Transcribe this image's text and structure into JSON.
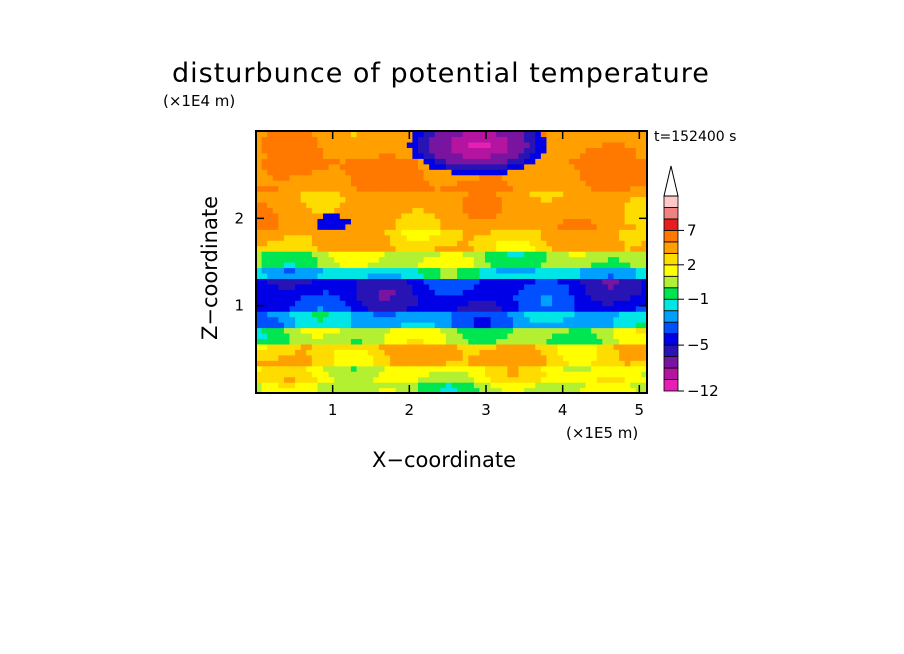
{
  "chart_data": {
    "type": "heatmap",
    "title": "disturbunce of potential temperature",
    "xlabel": "X−coordinate",
    "ylabel": "Z−coordinate",
    "x_unit": "(×1E5 m)",
    "y_unit": "(×1E4 m)",
    "annotation": "t=152400 s",
    "xlim": [
      0,
      5.1
    ],
    "ylim": [
      0,
      3.0
    ],
    "x_ticks": [
      1,
      2,
      3,
      4,
      5
    ],
    "y_ticks": [
      1,
      2
    ],
    "colorbar": {
      "levels": [
        -12,
        -10,
        -8,
        -6,
        -5,
        -4,
        -3,
        -2,
        -1,
        0,
        1,
        2,
        3,
        5,
        7,
        9,
        11
      ],
      "labeled": [
        "7",
        "2",
        "−1",
        "−5",
        "−12"
      ],
      "colors": [
        "#e620b4",
        "#b414a0",
        "#7814a0",
        "#2814b4",
        "#0000e6",
        "#0050ff",
        "#00a0ff",
        "#00e6e6",
        "#00e650",
        "#b4f032",
        "#ffff00",
        "#ffdc00",
        "#ffa000",
        "#ff7800",
        "#e61e1e",
        "#f08282",
        "#ffc8c8"
      ],
      "extend": "max"
    },
    "field_bands": [
      {
        "z": [
          0.0,
          0.15
        ],
        "value": 0.5
      },
      {
        "z": [
          0.15,
          0.3
        ],
        "value": 1.5
      },
      {
        "z": [
          0.3,
          0.55
        ],
        "value": 3.0
      },
      {
        "z": [
          0.55,
          0.75
        ],
        "value": 0.5
      },
      {
        "z": [
          0.75,
          0.95
        ],
        "value": -2.5
      },
      {
        "z": [
          0.95,
          1.3
        ],
        "value": -4.5
      },
      {
        "z": [
          1.3,
          1.45
        ],
        "value": -1.5
      },
      {
        "z": [
          1.45,
          1.6
        ],
        "value": 0.5
      },
      {
        "z": [
          1.6,
          1.9
        ],
        "value": 3.0
      },
      {
        "z": [
          1.9,
          2.3
        ],
        "value": 4.0
      },
      {
        "z": [
          2.3,
          2.7
        ],
        "value": 5.0
      },
      {
        "z": [
          2.7,
          3.0
        ],
        "value": 4.5
      }
    ]
  }
}
